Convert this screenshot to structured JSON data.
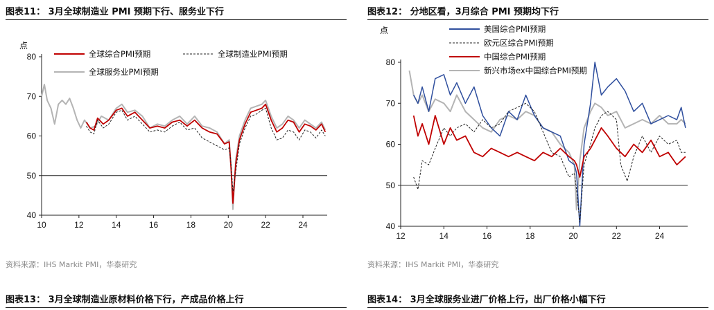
{
  "figures": [
    {
      "title": "图表11：  3月全球制造业 PMI 预期下行、服务业下行",
      "source": "资料来源：IHS Markit PMI，华泰研究"
    },
    {
      "title": "图表12：  分地区看，3月综合 PMI 预期均下行",
      "source": "资料来源：IHS Markit PMI，华泰研究"
    },
    {
      "title": "图表13：  3月全球制造业原材料价格下行，产成品价格上行"
    },
    {
      "title": "图表14：  3月全球服务业进厂价格上行，出厂价格小幅下行"
    }
  ],
  "chart_data": [
    {
      "type": "line",
      "title": "",
      "ylabel": "点",
      "ylim": [
        40,
        80
      ],
      "yticks": [
        40,
        50,
        60,
        70,
        80
      ],
      "xlim": [
        2010,
        2025.3
      ],
      "xticks": [
        "10",
        "12",
        "14",
        "16",
        "18",
        "20",
        "22",
        "24"
      ],
      "legend": "top",
      "series": [
        {
          "name": "全球综合PMI预期",
          "color": "#c00000",
          "style": "solid",
          "x": [
            2012.4,
            2012.6,
            2012.8,
            2013.0,
            2013.3,
            2013.6,
            2014.0,
            2014.3,
            2014.6,
            2015.0,
            2015.4,
            2015.8,
            2016.2,
            2016.6,
            2017.0,
            2017.4,
            2017.8,
            2018.2,
            2018.6,
            2019.0,
            2019.4,
            2019.8,
            2020.05,
            2020.15,
            2020.25,
            2020.4,
            2020.6,
            2020.9,
            2021.2,
            2021.5,
            2021.8,
            2022.0,
            2022.3,
            2022.6,
            2022.9,
            2023.2,
            2023.5,
            2023.8,
            2024.1,
            2024.4,
            2024.7,
            2025.0,
            2025.2
          ],
          "y": [
            63.5,
            62,
            61.5,
            64.5,
            63,
            64,
            66.5,
            67,
            65,
            66,
            64,
            62,
            62.5,
            62,
            63.5,
            64,
            62.5,
            64,
            62,
            61,
            60.5,
            58,
            58.5,
            52,
            43,
            53,
            59,
            63,
            66,
            66.5,
            67,
            68,
            64,
            61,
            62,
            64,
            63.5,
            61,
            63,
            62.5,
            61.5,
            63,
            61
          ]
        },
        {
          "name": "全球制造业PMI预期",
          "color": "#222222",
          "style": "dashed",
          "x": [
            2012.4,
            2012.6,
            2012.8,
            2013.0,
            2013.3,
            2013.6,
            2014.0,
            2014.3,
            2014.6,
            2015.0,
            2015.4,
            2015.8,
            2016.2,
            2016.6,
            2017.0,
            2017.4,
            2017.8,
            2018.2,
            2018.6,
            2019.0,
            2019.4,
            2019.8,
            2020.05,
            2020.15,
            2020.25,
            2020.4,
            2020.6,
            2020.9,
            2021.2,
            2021.5,
            2021.8,
            2022.0,
            2022.3,
            2022.6,
            2022.9,
            2023.2,
            2023.5,
            2023.8,
            2024.1,
            2024.4,
            2024.7,
            2025.0,
            2025.2
          ],
          "y": [
            62.5,
            61,
            60.5,
            64,
            62,
            63,
            66,
            66.5,
            64,
            65,
            63,
            61,
            61.5,
            61,
            62.5,
            63.5,
            61.5,
            62,
            59.5,
            58.5,
            57.5,
            56.5,
            57,
            53,
            46,
            51,
            58,
            62,
            65,
            65.5,
            66.5,
            67,
            62,
            59,
            59.5,
            61.5,
            61,
            59,
            61.5,
            61,
            59.5,
            61.5,
            60
          ]
        },
        {
          "name": "全球服务业PMI预期",
          "color": "#b4b4b4",
          "style": "solid",
          "x": [
            2010.0,
            2010.15,
            2010.3,
            2010.5,
            2010.7,
            2010.9,
            2011.1,
            2011.3,
            2011.5,
            2011.7,
            2011.9,
            2012.1,
            2012.3,
            2012.6,
            2012.9,
            2013.2,
            2013.6,
            2014.0,
            2014.3,
            2014.6,
            2015.0,
            2015.4,
            2015.8,
            2016.2,
            2016.6,
            2017.0,
            2017.4,
            2017.8,
            2018.2,
            2018.6,
            2019.0,
            2019.4,
            2019.8,
            2020.05,
            2020.15,
            2020.25,
            2020.4,
            2020.6,
            2020.9,
            2021.2,
            2021.5,
            2021.8,
            2022.0,
            2022.3,
            2022.6,
            2022.9,
            2023.2,
            2023.5,
            2023.8,
            2024.1,
            2024.4,
            2024.7,
            2025.0,
            2025.2
          ],
          "y": [
            70,
            73,
            69,
            67,
            63,
            68,
            69,
            68,
            69.5,
            67,
            64,
            62,
            64,
            62,
            62.5,
            65,
            64,
            67,
            68,
            66,
            66.5,
            65,
            62,
            63,
            62.5,
            64,
            65,
            63,
            65,
            62.5,
            62,
            61,
            58,
            59,
            52,
            41.5,
            54,
            60,
            64,
            67,
            67.5,
            68,
            69,
            65,
            62,
            63,
            65,
            64,
            62,
            64,
            63,
            62,
            63.5,
            61.5
          ]
        }
      ]
    },
    {
      "type": "line",
      "title": "",
      "ylabel": "点",
      "ylim": [
        40,
        80
      ],
      "yticks": [
        40,
        50,
        60,
        70,
        80
      ],
      "xlim": [
        2012,
        2025.3
      ],
      "xticks": [
        "12",
        "14",
        "16",
        "18",
        "20",
        "22",
        "24"
      ],
      "legend": "top",
      "series": [
        {
          "name": "美国综合PMI预期",
          "color": "#2f4f9e",
          "style": "solid",
          "x": [
            2012.6,
            2012.8,
            2013.0,
            2013.3,
            2013.6,
            2014.0,
            2014.3,
            2014.6,
            2015.0,
            2015.4,
            2015.8,
            2016.2,
            2016.6,
            2017.0,
            2017.4,
            2017.8,
            2018.2,
            2018.6,
            2019.0,
            2019.4,
            2019.8,
            2020.05,
            2020.15,
            2020.3,
            2020.5,
            2020.8,
            2021.0,
            2021.3,
            2021.6,
            2022.0,
            2022.4,
            2022.8,
            2023.2,
            2023.6,
            2024.0,
            2024.4,
            2024.8,
            2025.0,
            2025.2
          ],
          "y": [
            72,
            70,
            74,
            68,
            76,
            77,
            72,
            75,
            70,
            74,
            67,
            64,
            62,
            68,
            66,
            72,
            67,
            64,
            63,
            62,
            56,
            55,
            53,
            40,
            60,
            70,
            80,
            72,
            74,
            76,
            73,
            68,
            70,
            65,
            66,
            67,
            66,
            69,
            64
          ]
        },
        {
          "name": "欧元区综合PMI预期",
          "color": "#222222",
          "style": "dashed",
          "x": [
            2012.6,
            2012.8,
            2013.0,
            2013.3,
            2013.6,
            2014.0,
            2014.3,
            2014.6,
            2015.0,
            2015.4,
            2015.8,
            2016.2,
            2016.6,
            2017.0,
            2017.4,
            2017.8,
            2018.2,
            2018.6,
            2019.0,
            2019.4,
            2019.8,
            2020.05,
            2020.15,
            2020.3,
            2020.5,
            2020.8,
            2021.0,
            2021.3,
            2021.6,
            2022.0,
            2022.2,
            2022.5,
            2022.8,
            2023.2,
            2023.6,
            2024.0,
            2024.4,
            2024.8,
            2025.0,
            2025.2
          ],
          "y": [
            52,
            49,
            56,
            55,
            59,
            64,
            62,
            64,
            65,
            63,
            66,
            64,
            65,
            68,
            69,
            70,
            68,
            63,
            58,
            57,
            52,
            53,
            49,
            41,
            55,
            60,
            64,
            67,
            68,
            66,
            55,
            51,
            57,
            62,
            58,
            62,
            60,
            61,
            58,
            58
          ]
        },
        {
          "name": "中国综合PMI预期",
          "color": "#c00000",
          "style": "solid",
          "x": [
            2012.6,
            2012.8,
            2013.0,
            2013.3,
            2013.6,
            2014.0,
            2014.3,
            2014.6,
            2015.0,
            2015.4,
            2015.8,
            2016.2,
            2016.6,
            2017.0,
            2017.4,
            2017.8,
            2018.2,
            2018.6,
            2019.0,
            2019.4,
            2019.8,
            2020.05,
            2020.15,
            2020.3,
            2020.5,
            2020.8,
            2021.0,
            2021.3,
            2021.6,
            2022.0,
            2022.4,
            2022.8,
            2023.2,
            2023.6,
            2024.0,
            2024.4,
            2024.8,
            2025.0,
            2025.2
          ],
          "y": [
            67,
            62,
            65,
            60,
            67,
            60,
            64,
            61,
            62,
            58,
            57,
            59,
            58,
            57,
            58,
            57,
            56,
            58,
            57,
            59,
            57,
            56,
            55,
            52,
            57,
            59,
            61,
            64,
            62,
            59,
            57,
            60,
            58,
            61,
            57,
            58,
            55,
            56,
            57
          ]
        },
        {
          "name": "新兴市场ex中国综合PMI预期",
          "color": "#b4b4b4",
          "style": "solid",
          "x": [
            2012.4,
            2012.6,
            2012.8,
            2013.0,
            2013.3,
            2013.6,
            2014.0,
            2014.3,
            2014.6,
            2015.0,
            2015.4,
            2015.8,
            2016.2,
            2016.6,
            2017.0,
            2017.4,
            2017.8,
            2018.2,
            2018.6,
            2019.0,
            2019.4,
            2019.8,
            2020.05,
            2020.15,
            2020.3,
            2020.5,
            2020.8,
            2021.0,
            2021.3,
            2021.6,
            2022.0,
            2022.4,
            2022.8,
            2023.2,
            2023.6,
            2024.0,
            2024.4,
            2024.8,
            2025.0,
            2025.2
          ],
          "y": [
            78,
            72,
            70,
            72,
            68,
            71,
            70,
            68,
            72,
            68,
            66,
            64,
            63,
            66,
            67,
            66,
            68,
            67,
            64,
            63,
            60,
            58,
            55,
            44,
            56,
            64,
            68,
            70,
            69,
            67,
            68,
            64,
            65,
            66,
            65,
            67,
            65,
            65,
            66,
            65
          ]
        }
      ]
    }
  ]
}
